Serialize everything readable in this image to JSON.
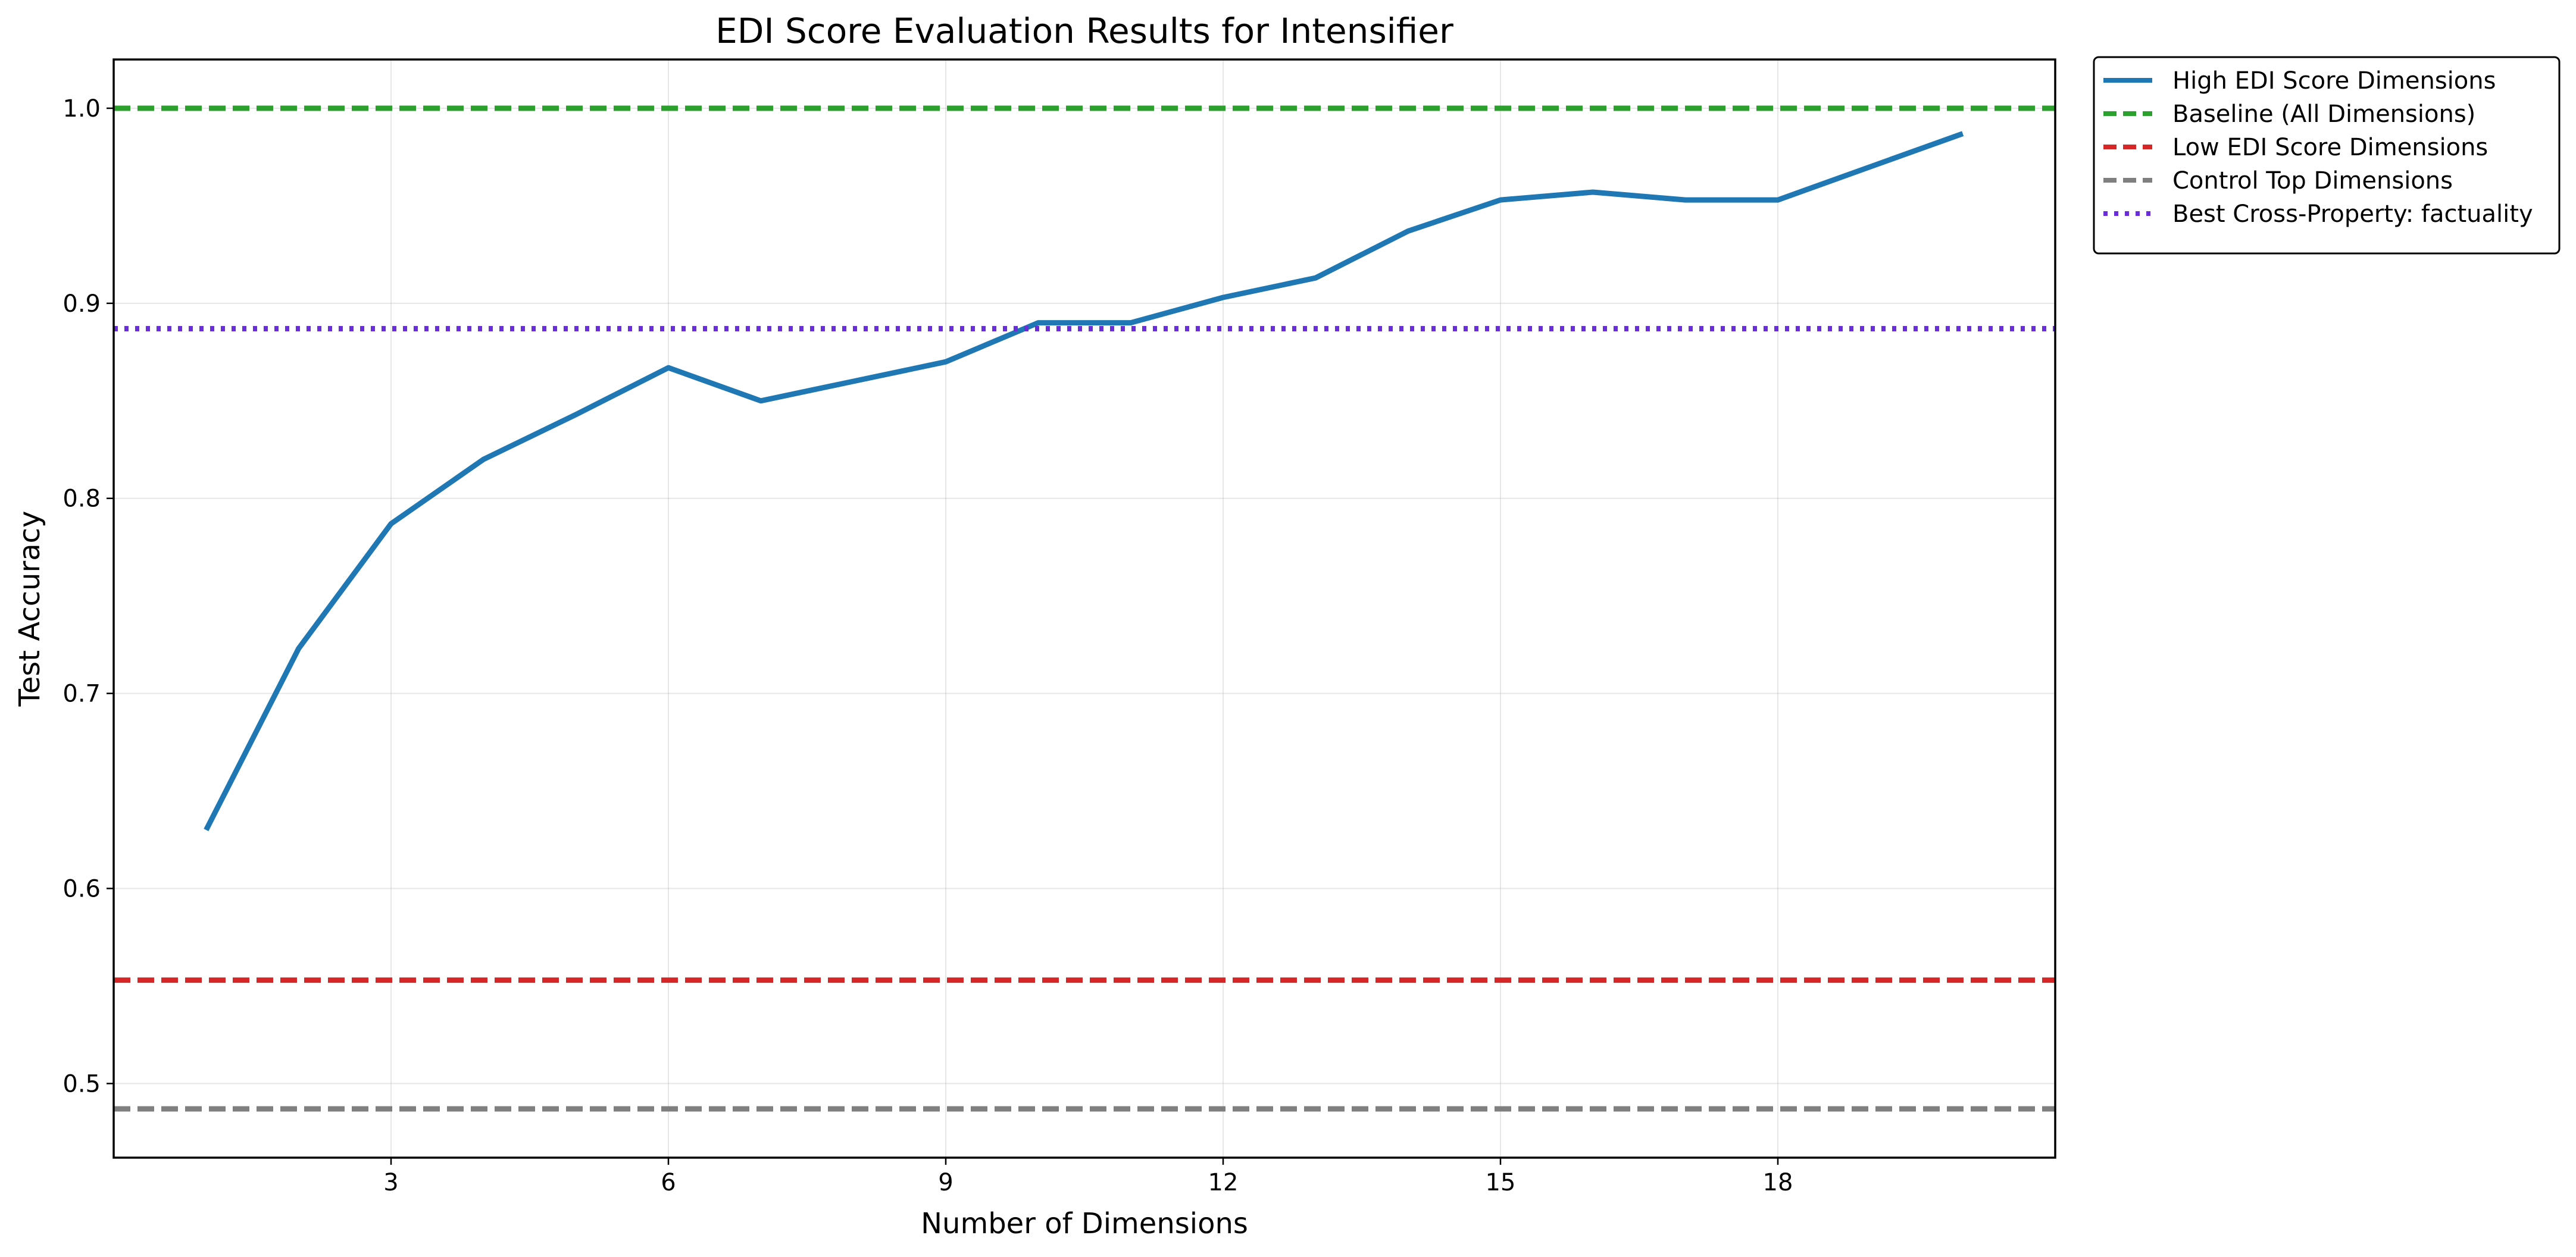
{
  "chart_data": {
    "type": "line",
    "title": "EDI Score Evaluation Results for Intensifier",
    "xlabel": "Number of Dimensions",
    "ylabel": "Test Accuracy",
    "xlim": [
      0,
      21
    ],
    "ylim": [
      0.462,
      1.025
    ],
    "x_ticks": [
      3,
      6,
      9,
      12,
      15,
      18
    ],
    "y_ticks": [
      0.5,
      0.6,
      0.7,
      0.8,
      0.9,
      1.0
    ],
    "y_tick_labels": [
      "0.5",
      "0.6",
      "0.7",
      "0.8",
      "0.9",
      "1.0"
    ],
    "grid": true,
    "legend_position": "outside top-right",
    "series": [
      {
        "name": "High EDI Score Dimensions",
        "kind": "line",
        "style": "solid",
        "color": "#1f77b4",
        "x": [
          1,
          2,
          3,
          4,
          5,
          6,
          7,
          8,
          9,
          10,
          11,
          12,
          13,
          14,
          15,
          16,
          17,
          18,
          19,
          20
        ],
        "y": [
          0.63,
          0.723,
          0.787,
          0.82,
          0.843,
          0.867,
          0.85,
          0.86,
          0.87,
          0.89,
          0.89,
          0.903,
          0.913,
          0.937,
          0.953,
          0.957,
          0.953,
          0.953,
          0.97,
          0.987
        ]
      },
      {
        "name": "Baseline (All Dimensions)",
        "kind": "hline",
        "style": "dashed",
        "color": "#2ca02c",
        "value": 1.0
      },
      {
        "name": "Low EDI Score Dimensions",
        "kind": "hline",
        "style": "dashed",
        "color": "#d62728",
        "value": 0.553
      },
      {
        "name": "Control Top Dimensions",
        "kind": "hline",
        "style": "dashed",
        "color": "#7f7f7f",
        "value": 0.487
      },
      {
        "name": "Best Cross-Property: factuality",
        "kind": "hline",
        "style": "dotted",
        "color": "#6a2ed8",
        "value": 0.887
      }
    ]
  }
}
